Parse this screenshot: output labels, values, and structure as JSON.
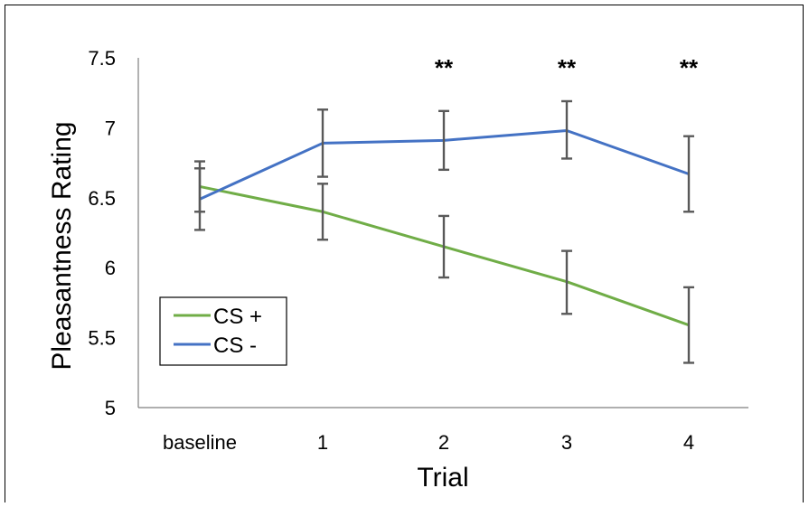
{
  "chart_data": {
    "type": "line",
    "categories": [
      "baseline",
      "1",
      "2",
      "3",
      "4"
    ],
    "title": "",
    "xlabel": "Trial",
    "ylabel": "Pleasantness Rating",
    "ylim": [
      5,
      7.5
    ],
    "yticks": [
      5,
      5.5,
      6,
      6.5,
      7,
      7.5
    ],
    "ytick_labels": [
      "5",
      "5.5",
      "6",
      "6.5",
      "7",
      "7.5"
    ],
    "grid": false,
    "legend_position": "bottom-left",
    "series": [
      {
        "name": "CS +",
        "color": "#70ad47",
        "values": [
          6.58,
          6.4,
          6.15,
          5.9,
          5.59
        ],
        "err_low": [
          6.4,
          6.2,
          5.93,
          5.67,
          5.32
        ],
        "err_high": [
          6.76,
          6.6,
          6.37,
          6.12,
          5.86
        ]
      },
      {
        "name": "CS -",
        "color": "#4472c4",
        "values": [
          6.49,
          6.89,
          6.91,
          6.98,
          6.67
        ],
        "err_low": [
          6.27,
          6.65,
          6.7,
          6.78,
          6.4
        ],
        "err_high": [
          6.71,
          7.13,
          7.12,
          7.19,
          6.94
        ]
      }
    ],
    "annotations": [
      {
        "category": "2",
        "text": "**"
      },
      {
        "category": "3",
        "text": "**"
      },
      {
        "category": "4",
        "text": "**"
      }
    ],
    "errorbar_color": "#595959"
  }
}
